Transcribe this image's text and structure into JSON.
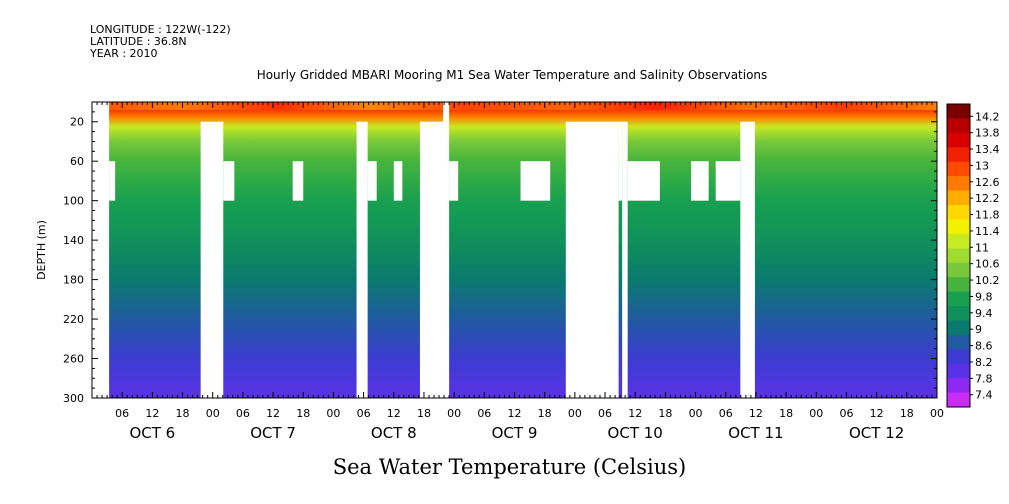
{
  "header": {
    "longitude": "LONGITUDE : 122W(-122)",
    "latitude": "LATITUDE : 36.8N",
    "year": "YEAR : 2010"
  },
  "title": "Hourly Gridded MBARI Mooring M1 Sea Water Temperature and Salinity Observations",
  "bottom_title": "Sea Water Temperature (Celsius)",
  "chart_data": {
    "type": "heatmap",
    "title": "Hourly Gridded MBARI Mooring M1 Sea Water Temperature and Salinity Observations",
    "xlabel": "",
    "ylabel": "DEPTH (m)",
    "colorbar_label": "Sea Water Temperature (Celsius)",
    "x_range_hours": [
      0,
      168
    ],
    "y_range_m": [
      0,
      300
    ],
    "y_reversed": true,
    "y_ticks": [
      20,
      60,
      100,
      140,
      180,
      220,
      260,
      300
    ],
    "x_hour_labels": [
      "06",
      "12",
      "18",
      "00",
      "06",
      "12",
      "18",
      "00",
      "06",
      "12",
      "18",
      "00",
      "06",
      "12",
      "18",
      "00",
      "06",
      "12",
      "18",
      "00",
      "06",
      "12",
      "18",
      "00",
      "06",
      "12",
      "18",
      "00"
    ],
    "x_hour_values": [
      6,
      12,
      18,
      24,
      30,
      36,
      42,
      48,
      54,
      60,
      66,
      72,
      78,
      84,
      90,
      96,
      102,
      108,
      114,
      120,
      126,
      132,
      138,
      144,
      150,
      156,
      162,
      168
    ],
    "day_labels": [
      "OCT 6",
      "OCT 7",
      "OCT 8",
      "OCT 9",
      "OCT 10",
      "OCT 11",
      "OCT 12"
    ],
    "colorbar_ticks": [
      "14.2",
      "13.8",
      "13.4",
      "13",
      "12.6",
      "12.2",
      "11.8",
      "11.4",
      "11",
      "10.6",
      "10.2",
      "9.8",
      "9.4",
      "9",
      "8.6",
      "8.2",
      "7.8",
      "7.4"
    ],
    "colorbar_colors": [
      "#7a0000",
      "#b80000",
      "#d90000",
      "#f02000",
      "#ff4a00",
      "#ff7a00",
      "#ffad00",
      "#ffd800",
      "#f2f200",
      "#c8ea20",
      "#a0dc30",
      "#78c83c",
      "#46b43c",
      "#18a050",
      "#10905a",
      "#0a7a6e",
      "#205aa0",
      "#3c3cd2",
      "#5a32e6",
      "#8c28f0",
      "#c82cf5"
    ],
    "depth_profile": [
      {
        "depth": 5,
        "temp": 13.2
      },
      {
        "depth": 15,
        "temp": 12.4
      },
      {
        "depth": 25,
        "temp": 11.2
      },
      {
        "depth": 40,
        "temp": 10.5
      },
      {
        "depth": 60,
        "temp": 10.2
      },
      {
        "depth": 100,
        "temp": 9.9
      },
      {
        "depth": 140,
        "temp": 9.5
      },
      {
        "depth": 180,
        "temp": 9.0
      },
      {
        "depth": 220,
        "temp": 8.7
      },
      {
        "depth": 260,
        "temp": 8.4
      },
      {
        "depth": 300,
        "temp": 8.0
      }
    ],
    "missing_data": [
      {
        "t0": 0,
        "t1": 3.4,
        "d0": 0,
        "d1": 300
      },
      {
        "t0": 3.4,
        "t1": 4.6,
        "d0": 60,
        "d1": 100
      },
      {
        "t0": 21.6,
        "t1": 26.1,
        "d0": 20,
        "d1": 300
      },
      {
        "t0": 26.1,
        "t1": 28.3,
        "d0": 60,
        "d1": 100
      },
      {
        "t0": 39.9,
        "t1": 42.0,
        "d0": 60,
        "d1": 100
      },
      {
        "t0": 52.6,
        "t1": 54.8,
        "d0": 20,
        "d1": 300
      },
      {
        "t0": 54.8,
        "t1": 56.6,
        "d0": 60,
        "d1": 100
      },
      {
        "t0": 60.0,
        "t1": 61.7,
        "d0": 60,
        "d1": 100
      },
      {
        "t0": 65.2,
        "t1": 71.0,
        "d0": 20,
        "d1": 300
      },
      {
        "t0": 69.8,
        "t1": 71.0,
        "d0": 0,
        "d1": 20
      },
      {
        "t0": 71.0,
        "t1": 72.8,
        "d0": 60,
        "d1": 100
      },
      {
        "t0": 85.2,
        "t1": 91.1,
        "d0": 60,
        "d1": 100
      },
      {
        "t0": 94.2,
        "t1": 104.7,
        "d0": 20,
        "d1": 300
      },
      {
        "t0": 104.7,
        "t1": 105.4,
        "d0": 20,
        "d1": 100
      },
      {
        "t0": 105.4,
        "t1": 106.5,
        "d0": 20,
        "d1": 300
      },
      {
        "t0": 106.5,
        "t1": 112.9,
        "d0": 60,
        "d1": 100
      },
      {
        "t0": 119.1,
        "t1": 122.6,
        "d0": 60,
        "d1": 100
      },
      {
        "t0": 124.0,
        "t1": 128.9,
        "d0": 60,
        "d1": 100
      },
      {
        "t0": 128.9,
        "t1": 131.8,
        "d0": 20,
        "d1": 300
      }
    ]
  }
}
